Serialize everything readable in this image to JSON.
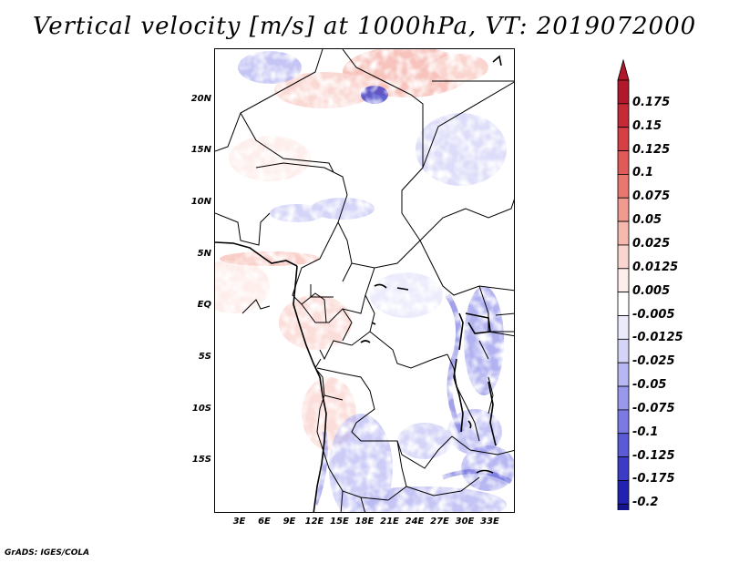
{
  "title": "Vertical velocity [m/s] at 1000hPa, VT: 2019072000",
  "footer": "GrADS: IGES/COLA",
  "map": {
    "lon_range": [
      0,
      36
    ],
    "lat_range": [
      -20,
      25
    ],
    "lat_ticks": [
      {
        "value": 20,
        "label": "20N"
      },
      {
        "value": 15,
        "label": "15N"
      },
      {
        "value": 10,
        "label": "10N"
      },
      {
        "value": 5,
        "label": "5N"
      },
      {
        "value": 0,
        "label": "EQ"
      },
      {
        "value": -5,
        "label": "5S"
      },
      {
        "value": -10,
        "label": "10S"
      },
      {
        "value": -15,
        "label": "15S"
      }
    ],
    "lon_ticks": [
      {
        "value": 3,
        "label": "3E"
      },
      {
        "value": 6,
        "label": "6E"
      },
      {
        "value": 9,
        "label": "9E"
      },
      {
        "value": 12,
        "label": "12E"
      },
      {
        "value": 15,
        "label": "15E"
      },
      {
        "value": 18,
        "label": "18E"
      },
      {
        "value": 21,
        "label": "21E"
      },
      {
        "value": 24,
        "label": "24E"
      },
      {
        "value": 27,
        "label": "27E"
      },
      {
        "value": 30,
        "label": "30E"
      },
      {
        "value": 33,
        "label": "33E"
      }
    ]
  },
  "colorbar": {
    "levels": [
      "0.175",
      "0.15",
      "0.125",
      "0.1",
      "0.075",
      "0.05",
      "0.025",
      "0.0125",
      "0.005",
      "-0.005",
      "-0.0125",
      "-0.025",
      "-0.05",
      "-0.075",
      "-0.1",
      "-0.125",
      "-0.175",
      "-0.2"
    ],
    "colors": [
      "#b2182b",
      "#c62a36",
      "#d63f44",
      "#e05a58",
      "#e8776f",
      "#f09a90",
      "#f6b9b0",
      "#fad5cf",
      "#fdeeeb",
      "#ffffff",
      "#ebebfc",
      "#d4d4f8",
      "#b7b7f3",
      "#9898ec",
      "#7a7ae2",
      "#5a5ad6",
      "#3b3bc6",
      "#2222b0",
      "#14148f"
    ],
    "top_arrow_color": "#b2182b",
    "bottom_arrow_color": "#14148f"
  }
}
